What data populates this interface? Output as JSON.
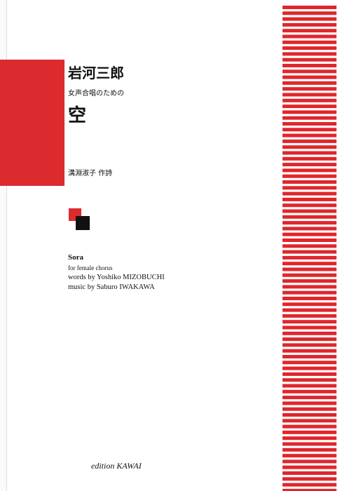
{
  "cover": {
    "composer_ja": "岩河三郎",
    "subtitle_ja": "女声合唱のための",
    "title_ja": "空",
    "lyricist_ja": "溝淵淑子 作詩",
    "title_en": "Sora",
    "subtitle_en": "for female chorus",
    "words_en": "words by Yoshiko MIZOBUCHI",
    "music_en": "music by Saburo IWAKAWA",
    "publisher": "edition KAWAI"
  }
}
